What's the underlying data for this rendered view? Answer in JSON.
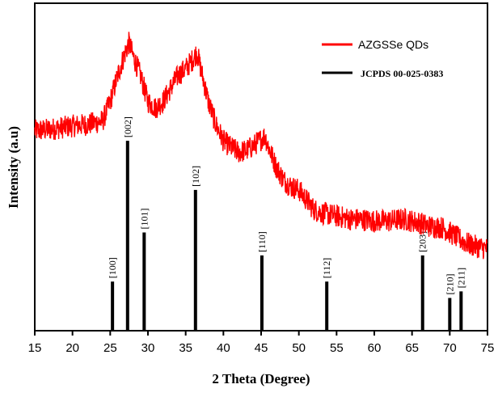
{
  "chart_data": {
    "type": "line",
    "xlabel": "2 Theta (Degree)",
    "ylabel": "Intensity (a.u)",
    "xlim": [
      15,
      75
    ],
    "xticks": [
      "15",
      "20",
      "25",
      "30",
      "35",
      "40",
      "45",
      "50",
      "55",
      "60",
      "65",
      "70",
      "75"
    ],
    "y_ticks_shown": false,
    "grid": false,
    "legend_position": "top-right",
    "series": [
      {
        "name": "AZGSSe QDs",
        "type": "line",
        "color": "#ff0000",
        "x": [
          15,
          17,
          20,
          22,
          24,
          25,
          26,
          27,
          27.5,
          28,
          29,
          30,
          31,
          32,
          33,
          34,
          35,
          36,
          36.5,
          37,
          38,
          39,
          40,
          41,
          42,
          43,
          44,
          45,
          45.5,
          46,
          47,
          48,
          49,
          50,
          51,
          52,
          53,
          54,
          55,
          56,
          57,
          58,
          59,
          60,
          61,
          62,
          63,
          64,
          65,
          66,
          67,
          68,
          69,
          70,
          71,
          72,
          73,
          74,
          75
        ],
        "y": [
          0.61,
          0.615,
          0.625,
          0.63,
          0.64,
          0.7,
          0.78,
          0.85,
          0.88,
          0.84,
          0.78,
          0.7,
          0.68,
          0.7,
          0.74,
          0.78,
          0.8,
          0.83,
          0.85,
          0.8,
          0.7,
          0.63,
          0.58,
          0.56,
          0.545,
          0.55,
          0.565,
          0.585,
          0.595,
          0.56,
          0.5,
          0.46,
          0.44,
          0.43,
          0.4,
          0.37,
          0.36,
          0.355,
          0.35,
          0.345,
          0.34,
          0.34,
          0.338,
          0.335,
          0.335,
          0.335,
          0.338,
          0.34,
          0.335,
          0.33,
          0.32,
          0.318,
          0.315,
          0.3,
          0.285,
          0.27,
          0.26,
          0.255,
          0.25
        ],
        "noise": 0.035
      },
      {
        "name": "JCPDS 00-025-0383",
        "type": "stick",
        "color": "#000000",
        "peaks": [
          {
            "x": 25.3,
            "height": 0.15,
            "label": "[100]"
          },
          {
            "x": 27.3,
            "height": 0.58,
            "label": "[002]"
          },
          {
            "x": 29.5,
            "height": 0.3,
            "label": "[101]"
          },
          {
            "x": 36.3,
            "height": 0.43,
            "label": "[102]"
          },
          {
            "x": 45.1,
            "height": 0.23,
            "label": "[110]"
          },
          {
            "x": 53.7,
            "height": 0.15,
            "label": "[112]"
          },
          {
            "x": 66.4,
            "height": 0.23,
            "label": "[203]"
          },
          {
            "x": 70.0,
            "height": 0.1,
            "label": "[210]"
          },
          {
            "x": 71.5,
            "height": 0.12,
            "label": "[211]"
          }
        ]
      }
    ]
  }
}
